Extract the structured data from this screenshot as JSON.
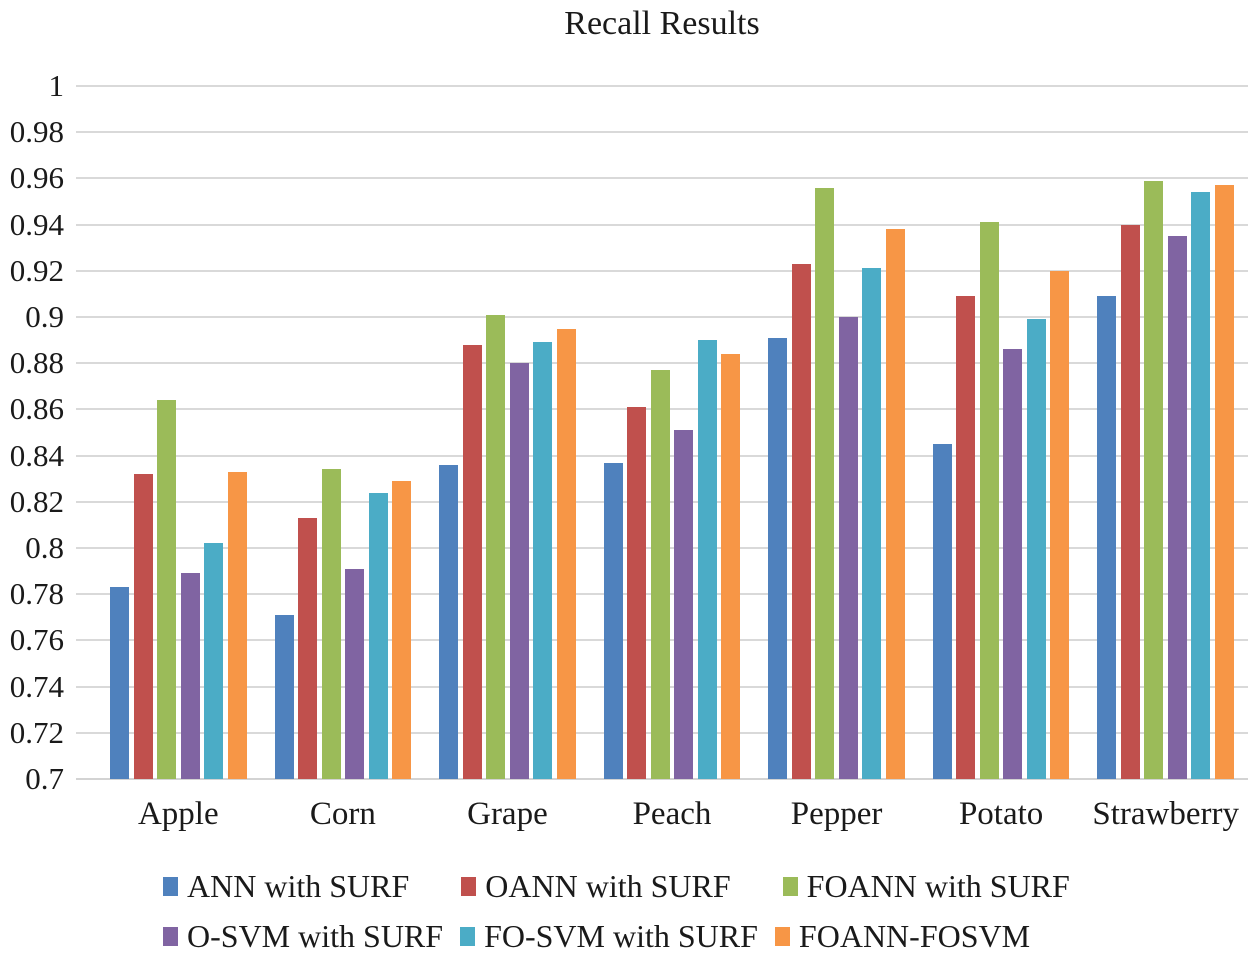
{
  "chart_data": {
    "type": "bar",
    "title": "Recall Results",
    "categories": [
      "Apple",
      "Corn",
      "Grape",
      "Peach",
      "Pepper",
      "Potato",
      "Strawberry"
    ],
    "series": [
      {
        "name": "ANN with SURF",
        "color": "#4F81BD",
        "values": [
          0.783,
          0.771,
          0.836,
          0.837,
          0.891,
          0.845,
          0.909
        ]
      },
      {
        "name": "OANN with SURF",
        "color": "#C0504D",
        "values": [
          0.832,
          0.813,
          0.888,
          0.861,
          0.923,
          0.909,
          0.94
        ]
      },
      {
        "name": "FOANN with SURF",
        "color": "#9BBB59",
        "values": [
          0.864,
          0.834,
          0.901,
          0.877,
          0.956,
          0.941,
          0.959
        ]
      },
      {
        "name": "O-SVM with SURF",
        "color": "#8064A2",
        "values": [
          0.789,
          0.791,
          0.88,
          0.851,
          0.9,
          0.886,
          0.935
        ]
      },
      {
        "name": "FO-SVM with SURF",
        "color": "#4BACC6",
        "values": [
          0.802,
          0.824,
          0.889,
          0.89,
          0.921,
          0.899,
          0.954
        ]
      },
      {
        "name": "FOANN-FOSVM",
        "color": "#F79646",
        "values": [
          0.833,
          0.829,
          0.895,
          0.884,
          0.938,
          0.92,
          0.957
        ]
      }
    ],
    "ylim": [
      0.7,
      1.0
    ],
    "ytick_step": 0.02,
    "yticks": [
      "1",
      "0.98",
      "0.96",
      "0.94",
      "0.92",
      "0.9",
      "0.88",
      "0.86",
      "0.84",
      "0.82",
      "0.8",
      "0.78",
      "0.76",
      "0.74",
      "0.72",
      "0.7"
    ],
    "xlabel": "",
    "ylabel": "",
    "grid": true,
    "gridline_color": "#D9D9D9",
    "legend_position": "bottom",
    "legend_rows": [
      [
        "ANN with SURF",
        "OANN with SURF",
        "FOANN with SURF"
      ],
      [
        "O-SVM with SURF",
        "FO-SVM with SURF",
        "FOANN-FOSVM"
      ]
    ]
  }
}
